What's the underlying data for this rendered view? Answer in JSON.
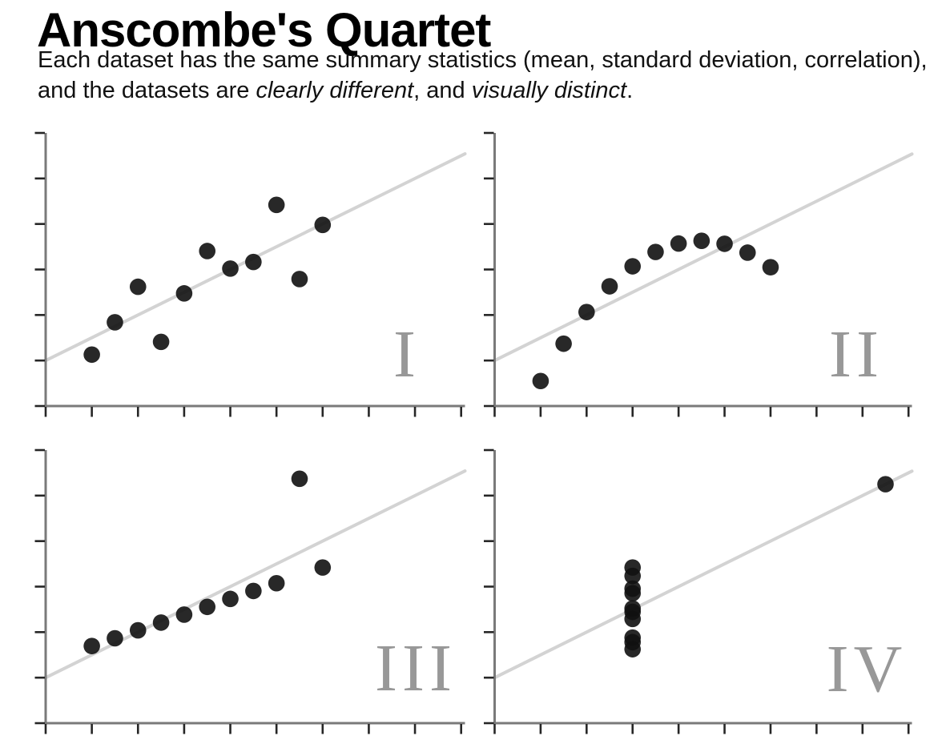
{
  "header": {
    "title": "Anscombe's Quartet",
    "subtitle_parts": [
      {
        "text": "Each dataset has the same summary statistics (mean, standard deviation, correlation), and the datasets are ",
        "italic": false
      },
      {
        "text": "clearly different",
        "italic": true
      },
      {
        "text": ", and ",
        "italic": false
      },
      {
        "text": "visually distinct",
        "italic": true
      },
      {
        "text": ".",
        "italic": false
      }
    ]
  },
  "chart_data": [
    {
      "type": "scatter",
      "label": "I",
      "x": [
        10,
        8,
        13,
        9,
        11,
        14,
        6,
        4,
        12,
        7,
        5
      ],
      "y": [
        8.04,
        6.95,
        7.58,
        8.81,
        8.33,
        9.96,
        7.24,
        4.26,
        10.84,
        4.82,
        5.68
      ],
      "regression": {
        "intercept": 3,
        "slope": 0.5
      },
      "xlim": [
        2,
        20
      ],
      "ylim": [
        2,
        14
      ],
      "x_tick_step": 2,
      "y_tick_step": 2,
      "grid": false,
      "tick_labels": false
    },
    {
      "type": "scatter",
      "label": "II",
      "x": [
        10,
        8,
        13,
        9,
        11,
        14,
        6,
        4,
        12,
        7,
        5
      ],
      "y": [
        9.14,
        8.14,
        8.74,
        8.77,
        9.26,
        8.1,
        6.13,
        3.1,
        9.13,
        7.26,
        4.74
      ],
      "regression": {
        "intercept": 3,
        "slope": 0.5
      },
      "xlim": [
        2,
        20
      ],
      "ylim": [
        2,
        14
      ],
      "x_tick_step": 2,
      "y_tick_step": 2,
      "grid": false,
      "tick_labels": false
    },
    {
      "type": "scatter",
      "label": "III",
      "x": [
        10,
        8,
        13,
        9,
        11,
        14,
        6,
        4,
        12,
        7,
        5
      ],
      "y": [
        7.46,
        6.77,
        12.74,
        7.11,
        7.81,
        8.84,
        6.08,
        5.39,
        8.15,
        6.42,
        5.73
      ],
      "regression": {
        "intercept": 3,
        "slope": 0.5
      },
      "xlim": [
        2,
        20
      ],
      "ylim": [
        2,
        14
      ],
      "x_tick_step": 2,
      "y_tick_step": 2,
      "grid": false,
      "tick_labels": false
    },
    {
      "type": "scatter",
      "label": "IV",
      "x": [
        8,
        8,
        8,
        8,
        8,
        8,
        8,
        19,
        8,
        8,
        8
      ],
      "y": [
        6.58,
        5.76,
        7.71,
        8.84,
        8.47,
        7.04,
        5.25,
        12.5,
        5.56,
        7.91,
        6.89
      ],
      "regression": {
        "intercept": 3,
        "slope": 0.5
      },
      "xlim": [
        2,
        20
      ],
      "ylim": [
        2,
        14
      ],
      "x_tick_step": 2,
      "y_tick_step": 2,
      "grid": false,
      "tick_labels": false
    }
  ],
  "colors": {
    "title": "#000000",
    "text": "#111111",
    "dot": "#111111",
    "regression_line": "#d3d3d3",
    "axis": "#7a7a7a",
    "tick": "#262626",
    "numeral": "#989898",
    "background": "#ffffff"
  }
}
